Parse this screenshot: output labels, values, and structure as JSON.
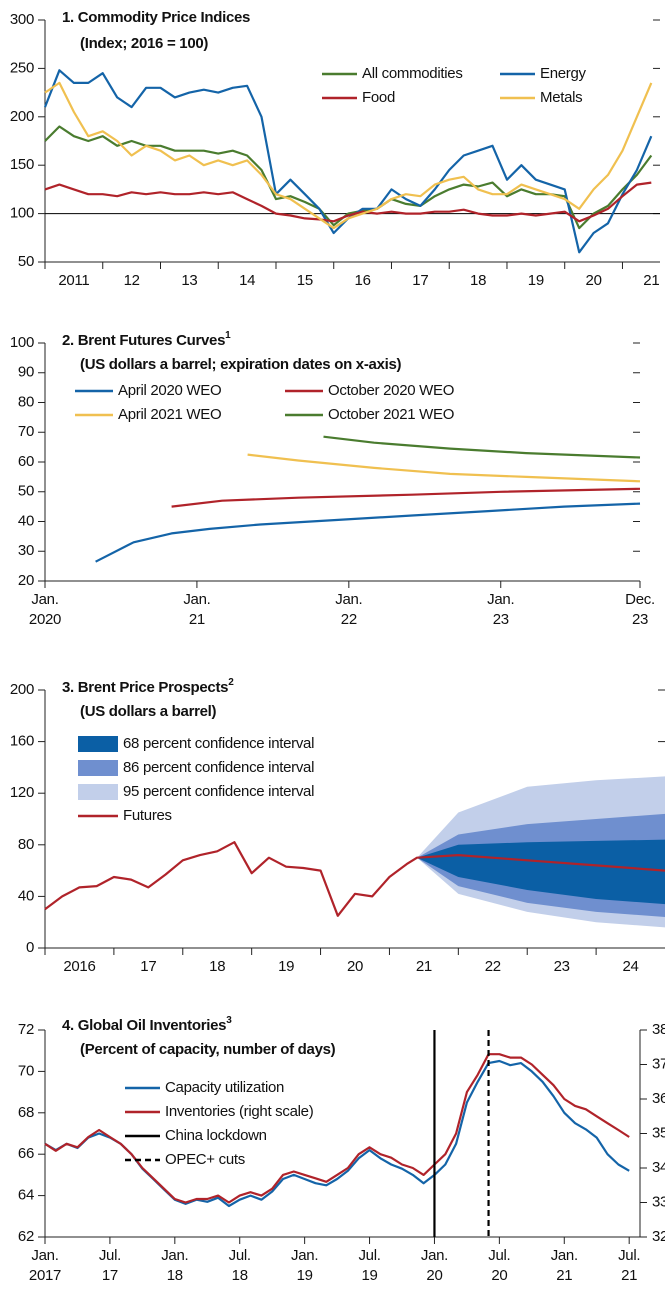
{
  "chart_data": [
    {
      "type": "line",
      "title": "1. Commodity Price Indices",
      "subtitle": "(Index; 2016 = 100)",
      "xlim": [
        2011,
        2021.65
      ],
      "xticks": [
        {
          "value": 2011,
          "label": "2011"
        },
        {
          "value": 2012,
          "label": "12"
        },
        {
          "value": 2013,
          "label": "13"
        },
        {
          "value": 2014,
          "label": "14"
        },
        {
          "value": 2015,
          "label": "15"
        },
        {
          "value": 2016,
          "label": "16"
        },
        {
          "value": 2017,
          "label": "17"
        },
        {
          "value": 2018,
          "label": "18"
        },
        {
          "value": 2019,
          "label": "19"
        },
        {
          "value": 2020,
          "label": "20"
        },
        {
          "value": 2021,
          "label": "21"
        }
      ],
      "ylim": [
        50,
        300
      ],
      "yticks": [
        50,
        100,
        150,
        200,
        250,
        300
      ],
      "hline": 100,
      "x": [
        2011,
        2011.25,
        2011.5,
        2011.75,
        2012,
        2012.25,
        2012.5,
        2012.75,
        2013,
        2013.25,
        2013.5,
        2013.75,
        2014,
        2014.25,
        2014.5,
        2014.75,
        2015,
        2015.25,
        2015.5,
        2015.75,
        2016,
        2016.25,
        2016.5,
        2016.75,
        2017,
        2017.25,
        2017.5,
        2017.75,
        2018,
        2018.25,
        2018.5,
        2018.75,
        2019,
        2019.25,
        2019.5,
        2019.75,
        2020,
        2020.25,
        2020.5,
        2020.75,
        2021,
        2021.25,
        2021.5
      ],
      "series": [
        {
          "name": "All commodities",
          "color": "#4a7c2f",
          "values": [
            175,
            190,
            180,
            175,
            180,
            170,
            175,
            170,
            170,
            165,
            165,
            165,
            162,
            165,
            160,
            145,
            115,
            118,
            112,
            105,
            88,
            100,
            103,
            105,
            115,
            110,
            108,
            118,
            125,
            130,
            128,
            132,
            118,
            125,
            120,
            120,
            118,
            85,
            100,
            108,
            125,
            140,
            160
          ]
        },
        {
          "name": "Energy",
          "color": "#1464a8",
          "values": [
            210,
            248,
            235,
            235,
            245,
            220,
            210,
            230,
            230,
            220,
            225,
            228,
            225,
            230,
            232,
            200,
            120,
            135,
            120,
            105,
            80,
            95,
            105,
            105,
            125,
            115,
            108,
            125,
            145,
            160,
            165,
            170,
            135,
            150,
            135,
            130,
            125,
            60,
            80,
            90,
            120,
            145,
            180
          ]
        },
        {
          "name": "Food",
          "color": "#b0232a",
          "values": [
            125,
            130,
            125,
            120,
            120,
            118,
            122,
            120,
            122,
            120,
            120,
            122,
            120,
            122,
            115,
            108,
            100,
            98,
            95,
            94,
            92,
            98,
            102,
            100,
            102,
            100,
            100,
            102,
            102,
            104,
            100,
            98,
            98,
            100,
            98,
            100,
            102,
            92,
            98,
            105,
            118,
            130,
            132
          ]
        },
        {
          "name": "Metals",
          "color": "#f0c050",
          "values": [
            225,
            235,
            205,
            180,
            185,
            175,
            160,
            170,
            165,
            155,
            160,
            150,
            155,
            150,
            155,
            140,
            120,
            115,
            105,
            95,
            85,
            95,
            100,
            105,
            115,
            120,
            118,
            130,
            135,
            138,
            125,
            120,
            120,
            130,
            125,
            120,
            115,
            105,
            125,
            140,
            165,
            200,
            235
          ]
        }
      ]
    },
    {
      "type": "line",
      "title": "2. Brent Futures Curves",
      "title_note": "1",
      "subtitle": "(US dollars a barrel; expiration dates on x-axis)",
      "xlim": [
        "2020-01",
        "2023-12"
      ],
      "xticks": [
        {
          "value": "2020-01",
          "label": [
            "Jan.",
            "2020"
          ]
        },
        {
          "value": "2021-01",
          "label": [
            "Jan.",
            "21"
          ]
        },
        {
          "value": "2022-01",
          "label": [
            "Jan.",
            "22"
          ]
        },
        {
          "value": "2023-01",
          "label": [
            "Jan.",
            "23"
          ]
        },
        {
          "value": "2023-12",
          "label": [
            "Dec.",
            "23"
          ]
        }
      ],
      "ylim": [
        20,
        100
      ],
      "yticks": [
        20,
        30,
        40,
        50,
        60,
        70,
        80,
        90,
        100
      ],
      "series": [
        {
          "name": "April 2020 WEO",
          "color": "#1464a8",
          "x": [
            "2020-05",
            "2020-08",
            "2020-11",
            "2021-02",
            "2021-06",
            "2021-12",
            "2022-06",
            "2022-12",
            "2023-06",
            "2023-12"
          ],
          "values": [
            26.5,
            33,
            36,
            37.5,
            39,
            40.5,
            42,
            43.5,
            45,
            46
          ]
        },
        {
          "name": "October 2020 WEO",
          "color": "#b0232a",
          "x": [
            "2020-11",
            "2021-03",
            "2021-09",
            "2022-06",
            "2023-01",
            "2023-12"
          ],
          "values": [
            45,
            47,
            48,
            49,
            50,
            51
          ]
        },
        {
          "name": "April 2021 WEO",
          "color": "#f0c050",
          "x": [
            "2021-05",
            "2021-09",
            "2022-03",
            "2022-09",
            "2023-03",
            "2023-12"
          ],
          "values": [
            62.5,
            60.5,
            58,
            56,
            55,
            53.5
          ]
        },
        {
          "name": "October 2021 WEO",
          "color": "#4a7c2f",
          "x": [
            "2021-11",
            "2022-03",
            "2022-09",
            "2023-03",
            "2023-12"
          ],
          "values": [
            68.5,
            66.5,
            64.5,
            63,
            61.5
          ]
        }
      ]
    },
    {
      "type": "fan",
      "title": "3. Brent Price Prospects",
      "title_note": "2",
      "subtitle": "(US dollars a barrel)",
      "xlim": [
        2016,
        2025
      ],
      "xticks": [
        {
          "value": 2016,
          "label": "2016"
        },
        {
          "value": 2017,
          "label": "17"
        },
        {
          "value": 2018,
          "label": "18"
        },
        {
          "value": 2019,
          "label": "19"
        },
        {
          "value": 2020,
          "label": "20"
        },
        {
          "value": 2021,
          "label": "21"
        },
        {
          "value": 2022,
          "label": "22"
        },
        {
          "value": 2023,
          "label": "23"
        },
        {
          "value": 2024,
          "label": "24"
        }
      ],
      "ylim": [
        0,
        200
      ],
      "yticks": [
        0,
        40,
        80,
        120,
        160,
        200
      ],
      "bands": [
        {
          "name": "68 percent confidence interval",
          "color": "#0b5fa5",
          "x": [
            2021.4,
            2022,
            2023,
            2024,
            2025
          ],
          "lower": [
            70,
            55,
            45,
            38,
            34
          ],
          "upper": [
            70,
            80,
            82,
            83,
            84
          ]
        },
        {
          "name": "86 percent confidence interval",
          "color": "#6f8fcf",
          "x": [
            2021.4,
            2022,
            2023,
            2024,
            2025
          ],
          "lower": [
            70,
            48,
            35,
            28,
            24
          ],
          "upper": [
            70,
            88,
            96,
            100,
            104
          ]
        },
        {
          "name": "95 percent confidence interval",
          "color": "#c2cfea",
          "x": [
            2021.4,
            2022,
            2023,
            2024,
            2025
          ],
          "lower": [
            70,
            42,
            28,
            20,
            16
          ],
          "upper": [
            70,
            105,
            125,
            130,
            133
          ]
        }
      ],
      "series": [
        {
          "name": "Futures",
          "color": "#b0232a",
          "x": [
            2016,
            2016.25,
            2016.5,
            2016.75,
            2017,
            2017.25,
            2017.5,
            2017.75,
            2018,
            2018.25,
            2018.5,
            2018.75,
            2019,
            2019.25,
            2019.5,
            2019.75,
            2020,
            2020.25,
            2020.5,
            2020.75,
            2021,
            2021.25,
            2021.4,
            2022,
            2023,
            2024,
            2025
          ],
          "values": [
            30,
            40,
            47,
            48,
            55,
            53,
            47,
            57,
            68,
            72,
            75,
            82,
            58,
            70,
            63,
            62,
            60,
            25,
            42,
            40,
            55,
            65,
            70,
            72,
            68,
            64,
            60
          ]
        }
      ]
    },
    {
      "type": "line",
      "title": "4. Global Oil Inventories",
      "title_note": "3",
      "subtitle": "(Percent of capacity, number of days)",
      "xlim": [
        "2017-01",
        "2021-08"
      ],
      "xticks": [
        {
          "value": "2017-01",
          "label": [
            "Jan.",
            "2017"
          ]
        },
        {
          "value": "2017-07",
          "label": [
            "Jul.",
            "17"
          ]
        },
        {
          "value": "2018-01",
          "label": [
            "Jan.",
            "18"
          ]
        },
        {
          "value": "2018-07",
          "label": [
            "Jul.",
            "18"
          ]
        },
        {
          "value": "2019-01",
          "label": [
            "Jan.",
            "19"
          ]
        },
        {
          "value": "2019-07",
          "label": [
            "Jul.",
            "19"
          ]
        },
        {
          "value": "2020-01",
          "label": [
            "Jan.",
            "20"
          ]
        },
        {
          "value": "2020-07",
          "label": [
            "Jul.",
            "20"
          ]
        },
        {
          "value": "2021-01",
          "label": [
            "Jan.",
            "21"
          ]
        },
        {
          "value": "2021-07",
          "label": [
            "Jul.",
            "21"
          ]
        }
      ],
      "ylim": [
        62,
        72
      ],
      "yticks": [
        62,
        64,
        66,
        68,
        70,
        72
      ],
      "y2lim": [
        32,
        38
      ],
      "y2ticks": [
        32,
        33,
        34,
        35,
        36,
        37,
        38
      ],
      "x": [
        "2017-01",
        "2017-02",
        "2017-03",
        "2017-04",
        "2017-05",
        "2017-06",
        "2017-07",
        "2017-08",
        "2017-09",
        "2017-10",
        "2017-11",
        "2017-12",
        "2018-01",
        "2018-02",
        "2018-03",
        "2018-04",
        "2018-05",
        "2018-06",
        "2018-07",
        "2018-08",
        "2018-09",
        "2018-10",
        "2018-11",
        "2018-12",
        "2019-01",
        "2019-02",
        "2019-03",
        "2019-04",
        "2019-05",
        "2019-06",
        "2019-07",
        "2019-08",
        "2019-09",
        "2019-10",
        "2019-11",
        "2019-12",
        "2020-01",
        "2020-02",
        "2020-03",
        "2020-04",
        "2020-05",
        "2020-06",
        "2020-07",
        "2020-08",
        "2020-09",
        "2020-10",
        "2020-11",
        "2020-12",
        "2021-01",
        "2021-02",
        "2021-03",
        "2021-04",
        "2021-05",
        "2021-06",
        "2021-07"
      ],
      "series": [
        {
          "name": "Capacity utilization",
          "color": "#1464a8",
          "values": [
            66.5,
            66.2,
            66.5,
            66.3,
            66.8,
            67.0,
            66.8,
            66.5,
            66.0,
            65.3,
            64.8,
            64.3,
            63.8,
            63.6,
            63.8,
            63.7,
            63.9,
            63.5,
            63.8,
            64.0,
            63.8,
            64.2,
            64.8,
            65.0,
            64.8,
            64.6,
            64.5,
            64.8,
            65.2,
            65.8,
            66.2,
            65.8,
            65.5,
            65.3,
            65.0,
            64.6,
            65.0,
            65.5,
            66.5,
            68.5,
            69.5,
            70.4,
            70.5,
            70.3,
            70.4,
            70.0,
            69.5,
            68.8,
            68.0,
            67.5,
            67.2,
            66.8,
            66.0,
            65.5,
            65.2
          ]
        },
        {
          "name": "Inventories (right scale)",
          "color": "#b0232a",
          "axis": "y2",
          "values": [
            34.7,
            34.5,
            34.7,
            34.6,
            34.9,
            35.1,
            34.9,
            34.7,
            34.4,
            34.0,
            33.7,
            33.4,
            33.1,
            33.0,
            33.1,
            33.1,
            33.2,
            33.0,
            33.2,
            33.3,
            33.2,
            33.4,
            33.8,
            33.9,
            33.8,
            33.7,
            33.6,
            33.8,
            34.0,
            34.4,
            34.6,
            34.4,
            34.3,
            34.1,
            34.0,
            33.8,
            34.1,
            34.4,
            35.0,
            36.2,
            36.7,
            37.3,
            37.3,
            37.2,
            37.2,
            37.0,
            36.7,
            36.4,
            36.0,
            35.8,
            35.7,
            35.5,
            35.3,
            35.1,
            34.9
          ]
        }
      ],
      "vlines": [
        {
          "name": "China lockdown",
          "x": "2020-01",
          "color": "#000000",
          "dash": false
        },
        {
          "name": "OPEC+ cuts",
          "x": "2020-06",
          "color": "#000000",
          "dash": true
        }
      ]
    }
  ]
}
